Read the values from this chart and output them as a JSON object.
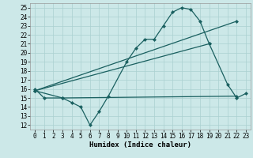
{
  "bg_color": "#cce8e8",
  "grid_color": "#aad0d0",
  "line_color": "#1a6060",
  "xlabel": "Humidex (Indice chaleur)",
  "ylabel_ticks": [
    12,
    13,
    14,
    15,
    16,
    17,
    18,
    19,
    20,
    21,
    22,
    23,
    24,
    25
  ],
  "xticks": [
    0,
    1,
    2,
    3,
    4,
    5,
    6,
    7,
    8,
    9,
    10,
    11,
    12,
    13,
    14,
    15,
    16,
    17,
    18,
    19,
    20,
    21,
    22,
    23
  ],
  "xlim": [
    -0.5,
    23.5
  ],
  "ylim": [
    11.5,
    25.5
  ],
  "line1_x": [
    0,
    1,
    3,
    4,
    5,
    6,
    7,
    8,
    10,
    11,
    12,
    13,
    14,
    15,
    16,
    17,
    18,
    19,
    21,
    22,
    23
  ],
  "line1_y": [
    16,
    15,
    15,
    14.5,
    14,
    12,
    13.5,
    15.2,
    19,
    20.5,
    21.5,
    21.5,
    23,
    24.5,
    25,
    24.8,
    23.5,
    21,
    16.5,
    15,
    15.5
  ],
  "line2_x": [
    0,
    3,
    22
  ],
  "line2_y": [
    15.8,
    15,
    15.2
  ],
  "line3_x": [
    0,
    19
  ],
  "line3_y": [
    15.8,
    21
  ],
  "line4_x": [
    0,
    22
  ],
  "line4_y": [
    15.8,
    23.5
  ],
  "marker_size": 2.5,
  "linewidth": 0.9,
  "tick_fontsize": 5.5,
  "xlabel_fontsize": 6.5
}
